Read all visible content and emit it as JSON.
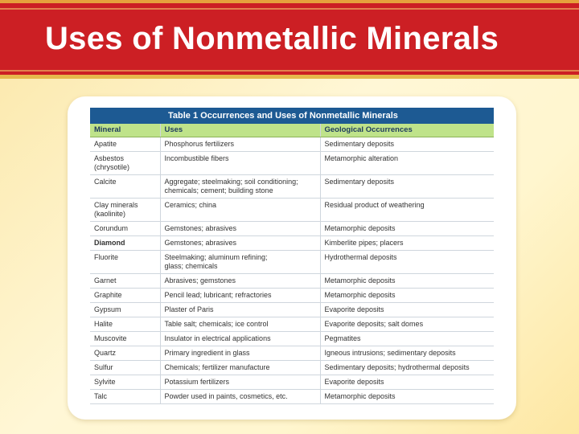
{
  "slide_title": "Uses of Nonmetallic Minerals",
  "table": {
    "caption": "Table 1 Occurrences and Uses of Nonmetallic Minerals",
    "headers": [
      "Mineral",
      "Uses",
      "Geological Occurrences"
    ],
    "rows": [
      {
        "mineral": "Apatite",
        "uses": "Phosphorus fertilizers",
        "occurrence": "Sedimentary deposits"
      },
      {
        "mineral": "Asbestos\n(chrysotile)",
        "uses": "Incombustible fibers",
        "occurrence": "Metamorphic alteration"
      },
      {
        "mineral": "Calcite",
        "uses": "Aggregate; steelmaking; soil conditioning;\nchemicals; cement; building stone",
        "occurrence": "Sedimentary deposits"
      },
      {
        "mineral": "Clay minerals\n(kaolinite)",
        "uses": "Ceramics; china",
        "occurrence": "Residual product of weathering"
      },
      {
        "mineral": "Corundum",
        "uses": "Gemstones; abrasives",
        "occurrence": "Metamorphic deposits"
      },
      {
        "mineral": "Diamond",
        "uses": "Gemstones; abrasives",
        "occurrence": "Kimberlite pipes; placers"
      },
      {
        "mineral": "Fluorite",
        "uses": "Steelmaking; aluminum refining;\nglass; chemicals",
        "occurrence": "Hydrothermal deposits"
      },
      {
        "mineral": "Garnet",
        "uses": "Abrasives; gemstones",
        "occurrence": "Metamorphic deposits"
      },
      {
        "mineral": "Graphite",
        "uses": "Pencil lead; lubricant; refractories",
        "occurrence": "Metamorphic deposits"
      },
      {
        "mineral": "Gypsum",
        "uses": "Plaster of Paris",
        "occurrence": "Evaporite deposits"
      },
      {
        "mineral": "Halite",
        "uses": "Table salt; chemicals; ice control",
        "occurrence": "Evaporite deposits; salt domes"
      },
      {
        "mineral": "Muscovite",
        "uses": "Insulator in electrical applications",
        "occurrence": "Pegmatites"
      },
      {
        "mineral": "Quartz",
        "uses": "Primary ingredient in glass",
        "occurrence": "Igneous intrusions; sedimentary deposits"
      },
      {
        "mineral": "Sulfur",
        "uses": "Chemicals; fertilizer manufacture",
        "occurrence": "Sedimentary deposits; hydrothermal deposits"
      },
      {
        "mineral": "Sylvite",
        "uses": "Potassium fertilizers",
        "occurrence": "Evaporite deposits"
      },
      {
        "mineral": "Talc",
        "uses": "Powder used in paints, cosmetics, etc.",
        "occurrence": "Metamorphic deposits"
      }
    ]
  },
  "colors": {
    "title_bar": "#cc1f24",
    "caption_bar": "#1d5a93",
    "header_row": "#bfe38a"
  }
}
